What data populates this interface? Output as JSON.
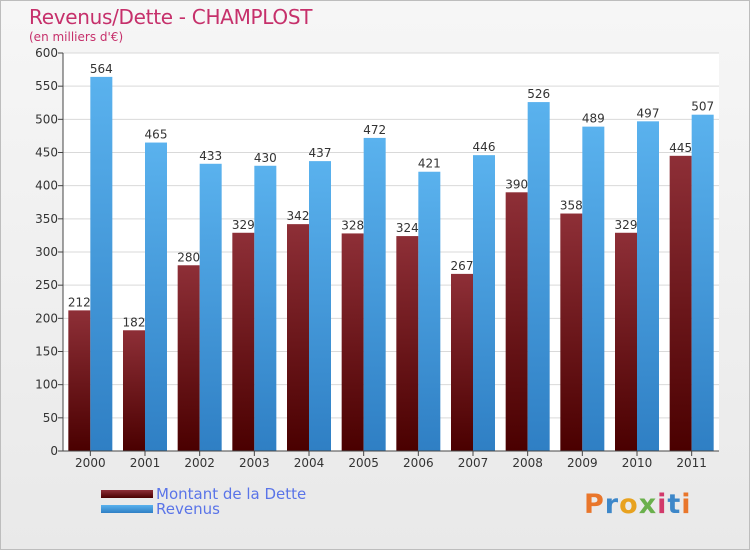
{
  "chart_data": {
    "type": "bar",
    "title": "Revenus/Dette - CHAMPLOST",
    "subtitle": "(en milliers d'€)",
    "categories": [
      "2000",
      "2001",
      "2002",
      "2003",
      "2004",
      "2005",
      "2006",
      "2007",
      "2008",
      "2009",
      "2010",
      "2011"
    ],
    "series": [
      {
        "name": "Montant de la Dette",
        "values": [
          212,
          182,
          280,
          329,
          342,
          328,
          324,
          267,
          390,
          358,
          329,
          445
        ],
        "color": "#7a1f24"
      },
      {
        "name": "Revenus",
        "values": [
          564,
          465,
          433,
          430,
          437,
          472,
          421,
          446,
          526,
          489,
          497,
          507
        ],
        "color": "#4aa3e6"
      }
    ],
    "ylim": [
      0,
      600
    ],
    "yticks": [
      0,
      50,
      100,
      150,
      200,
      250,
      300,
      350,
      400,
      450,
      500,
      550,
      600
    ],
    "grid": true,
    "legend_position": "bottom-left",
    "data_labels": true
  },
  "logo": {
    "text": "Proxiti",
    "letter_colors": [
      "#e9762b",
      "#3d87c9",
      "#e8a21f",
      "#6ab04c",
      "#d23a6b",
      "#3d87c9",
      "#e9762b"
    ]
  }
}
